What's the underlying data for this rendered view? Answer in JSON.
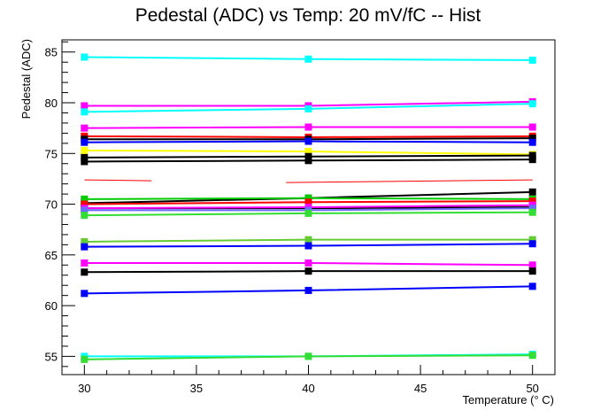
{
  "chart_data": {
    "type": "line",
    "title": "Pedestal (ADC) vs Temp: 20 mV/fC -- Hist",
    "xlabel": "Temperature (° C)",
    "ylabel": "Pedestal (ADC)",
    "x": [
      30,
      40,
      50
    ],
    "xlim": [
      29,
      51
    ],
    "ylim": [
      53.2,
      86.2
    ],
    "x_ticks": [
      "30",
      "35",
      "40",
      "45",
      "50"
    ],
    "y_ticks": [
      "55",
      "60",
      "65",
      "70",
      "75",
      "80",
      "85"
    ],
    "grid": false,
    "legend": "none",
    "series": [
      {
        "color": "#00ffff",
        "values": [
          84.5,
          84.3,
          84.2
        ]
      },
      {
        "color": "#ff00ff",
        "values": [
          79.7,
          79.7,
          80.1
        ]
      },
      {
        "color": "#00ffff",
        "values": [
          79.1,
          79.4,
          79.9
        ]
      },
      {
        "color": "#ff00ff",
        "values": [
          77.5,
          77.6,
          77.6
        ]
      },
      {
        "color": "#ff0000",
        "values": [
          76.7,
          76.6,
          76.7
        ]
      },
      {
        "color": "#000000",
        "values": [
          76.4,
          76.4,
          76.5
        ]
      },
      {
        "color": "#0000ff",
        "values": [
          76.1,
          76.2,
          76.1
        ]
      },
      {
        "color": "#ffff00",
        "values": [
          75.3,
          75.2,
          74.9
        ]
      },
      {
        "color": "#000000",
        "values": [
          74.6,
          74.7,
          74.8
        ]
      },
      {
        "color": "#000000",
        "values": [
          74.2,
          74.3,
          74.4
        ]
      },
      {
        "color": "#ff0000",
        "values": [
          72.4,
          72.1,
          72.4
        ],
        "dashed": true
      },
      {
        "color": "#000000",
        "values": [
          70.1,
          70.6,
          71.2
        ]
      },
      {
        "color": "#00cc00",
        "values": [
          70.5,
          70.6,
          70.5
        ]
      },
      {
        "color": "#ff0000",
        "values": [
          70.0,
          70.2,
          70.3
        ]
      },
      {
        "color": "#000000",
        "values": [
          69.6,
          69.6,
          69.7
        ]
      },
      {
        "color": "#ff00ff",
        "values": [
          69.6,
          69.7,
          69.9
        ]
      },
      {
        "color": "#6a6aff",
        "values": [
          69.4,
          69.4,
          69.6
        ]
      },
      {
        "color": "#33dd33",
        "values": [
          68.9,
          69.1,
          69.2
        ]
      },
      {
        "color": "#66cc33",
        "values": [
          66.3,
          66.5,
          66.5
        ]
      },
      {
        "color": "#0000ff",
        "values": [
          65.8,
          65.9,
          66.1
        ]
      },
      {
        "color": "#ff00ff",
        "values": [
          64.2,
          64.2,
          64.0
        ]
      },
      {
        "color": "#000000",
        "values": [
          63.3,
          63.4,
          63.4
        ]
      },
      {
        "color": "#0000ff",
        "values": [
          61.2,
          61.5,
          61.9
        ]
      },
      {
        "color": "#00ffff",
        "values": [
          55.0,
          55.0,
          55.2
        ]
      },
      {
        "color": "#33dd33",
        "values": [
          54.7,
          55.0,
          55.1
        ]
      }
    ]
  }
}
